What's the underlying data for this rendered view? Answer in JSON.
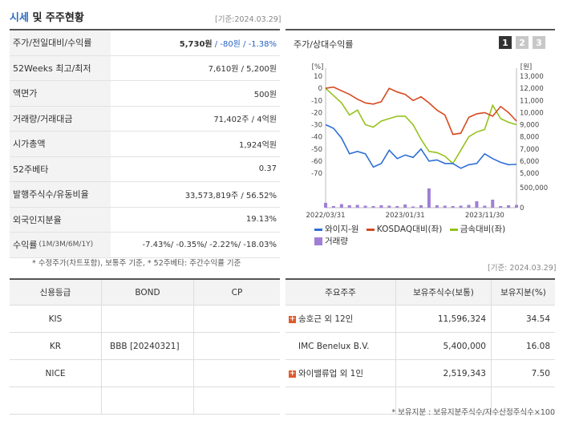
{
  "header": {
    "title_a": "시세",
    "title_b": " 및 주주현황",
    "base_date": "[기준:2024.03.29]"
  },
  "summary": [
    {
      "label": "주가/전일대비/수익률",
      "value_price": "5,730원",
      "value_change": " / -80원 / -1.38%"
    },
    {
      "label": "52Weeks 최고/최저",
      "value": "7,610원 / 5,200원"
    },
    {
      "label": "액면가",
      "value": "500원"
    },
    {
      "label": "거래량/거래대금",
      "value": "71,402주 / 4억원"
    },
    {
      "label": "시가총액",
      "value": "1,924억원"
    },
    {
      "label": "52주베타",
      "value": "0.37"
    },
    {
      "label": "발행주식수/유동비율",
      "value": "33,573,819주 / 56.52%"
    },
    {
      "label": "외국인지분율",
      "value": "19.13%"
    },
    {
      "label": "수익률",
      "label_sub": "(1M/3M/6M/1Y)",
      "value": "-7.43%/ -0.35%/ -2.22%/ -18.03%"
    }
  ],
  "footnote": "* 수정주가(차트포함), 보통주 기준, * 52주베타: 주간수익률 기준",
  "chart": {
    "title": "주가/상대수익률",
    "tabs": [
      "1",
      "2",
      "3"
    ],
    "left_unit": "[%]",
    "right_unit": "[원]",
    "left_ticks": [
      "10",
      "0",
      "-10",
      "-20",
      "-30",
      "-40",
      "-50",
      "-60",
      "-70"
    ],
    "right_ticks": [
      "13,000",
      "12,000",
      "11,000",
      "10,000",
      "9,000",
      "8,000",
      "7,000",
      "6,000",
      "5,000"
    ],
    "vol_ticks": [
      "500,000",
      "0"
    ],
    "x_labels": [
      "2022/03/31",
      "2023/01/31",
      "2023/11/30"
    ],
    "legend": {
      "s1": "와이지-원",
      "s2": "KOSDAQ대비(좌)",
      "s3": "금속대비(좌)",
      "vol": "거래량"
    },
    "colors": {
      "s1": "#2f6fd6",
      "s2": "#d64a1f",
      "s3": "#96c21e",
      "vol": "#9f7fd6"
    }
  },
  "chart_data": {
    "type": "line",
    "x": [
      "2022/03",
      "2022/04",
      "2022/05",
      "2022/06",
      "2022/07",
      "2022/08",
      "2022/09",
      "2022/10",
      "2022/11",
      "2022/12",
      "2023/01",
      "2023/02",
      "2023/03",
      "2023/04",
      "2023/05",
      "2023/06",
      "2023/07",
      "2023/08",
      "2023/09",
      "2023/10",
      "2023/11",
      "2023/12",
      "2024/01",
      "2024/02",
      "2024/03"
    ],
    "series": [
      {
        "name": "와이지-원",
        "axis": "right",
        "values": [
          9000,
          8700,
          7900,
          6600,
          6800,
          6600,
          5500,
          5800,
          6900,
          6200,
          6500,
          6300,
          7000,
          6000,
          6100,
          5800,
          5800,
          5400,
          5700,
          5800,
          6600,
          6200,
          5900,
          5700,
          5730
        ]
      },
      {
        "name": "KOSDAQ대비(좌)",
        "axis": "left",
        "values": [
          0,
          1,
          -2,
          -5,
          -9,
          -12,
          -13,
          -11,
          0,
          -3,
          -5,
          -10,
          -7,
          -12,
          -18,
          -22,
          -38,
          -37,
          -24,
          -21,
          -20,
          -23,
          -15,
          -20,
          -27
        ]
      },
      {
        "name": "금속대비(좌)",
        "axis": "left",
        "values": [
          0,
          -6,
          -12,
          -22,
          -18,
          -30,
          -32,
          -27,
          -25,
          -23,
          -23,
          -30,
          -42,
          -52,
          -53,
          -56,
          -62,
          -51,
          -40,
          -36,
          -34,
          -14,
          -25,
          -28,
          -30
        ]
      },
      {
        "name": "거래량",
        "type": "bar",
        "values": [
          120000,
          40000,
          90000,
          60000,
          70000,
          50000,
          40000,
          60000,
          50000,
          40000,
          80000,
          30000,
          60000,
          480000,
          60000,
          50000,
          40000,
          50000,
          70000,
          160000,
          50000,
          200000,
          40000,
          60000,
          70000
        ]
      }
    ],
    "ylim_left": [
      -70,
      10
    ],
    "ylim_right": [
      5000,
      13000
    ]
  },
  "credit": {
    "headers": [
      "신용등급",
      "BOND",
      "CP"
    ],
    "rows": [
      [
        "KIS",
        "",
        ""
      ],
      [
        "KR",
        "BBB [20240321]",
        ""
      ],
      [
        "NICE",
        "",
        ""
      ],
      [
        "",
        "",
        ""
      ]
    ]
  },
  "holders": {
    "base_date": "[기준: 2024.03.29]",
    "headers": [
      "주요주주",
      "보유주식수(보통)",
      "보유지분(%)"
    ],
    "rows": [
      {
        "name": "송호근 외 12인",
        "plus": true,
        "shares": "11,596,324",
        "pct": "34.54"
      },
      {
        "name": "IMC Benelux B.V.",
        "plus": false,
        "shares": "5,400,000",
        "pct": "16.08"
      },
      {
        "name": "와이밸류업 외 1인",
        "plus": true,
        "shares": "2,519,343",
        "pct": "7.50"
      }
    ],
    "footnote": "* 보유지분 : 보유지분주식수/자수산정주식수×100"
  }
}
